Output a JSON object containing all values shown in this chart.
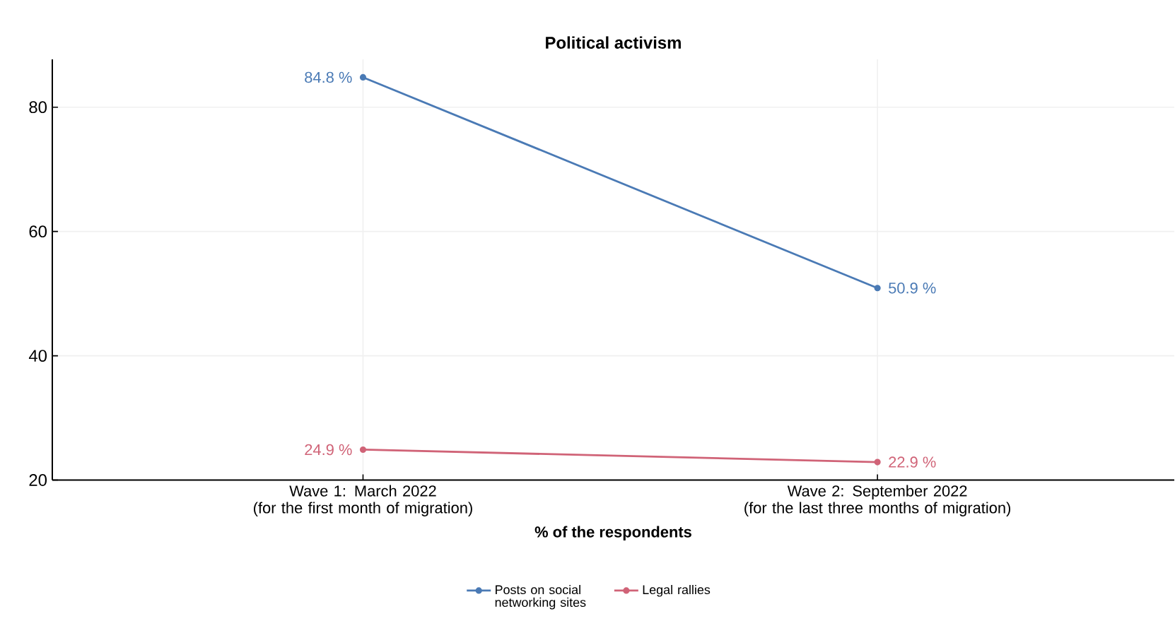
{
  "chart_data": {
    "type": "line",
    "title": "Political activism",
    "xlabel": "% of the respondents",
    "categories": [
      "Wave 1: March 2022\n(for the first month of migration)",
      "Wave 2: September 2022\n(for the last three months of migration)"
    ],
    "ylim": [
      20,
      87.7
    ],
    "yticks": [
      20,
      40,
      60,
      80
    ],
    "grid": true,
    "marker": "circle",
    "legend": "bottom",
    "series": [
      {
        "name": "Posts on social networking sites",
        "color": "#4a7ab5",
        "values": [
          84.8,
          50.9
        ],
        "value_labels": [
          "84.8 %",
          "50.9 %"
        ]
      },
      {
        "name": "Legal rallies",
        "color": "#d06377",
        "values": [
          24.9,
          22.9
        ],
        "value_labels": [
          "24.9 %",
          "22.9 %"
        ]
      }
    ]
  }
}
